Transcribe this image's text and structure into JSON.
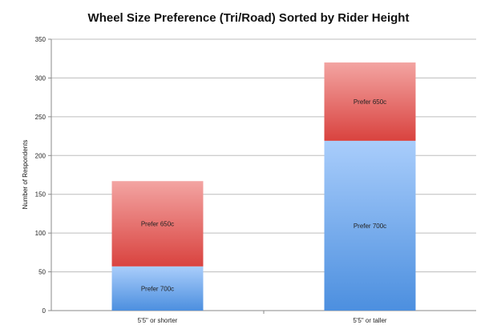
{
  "chart_data": {
    "type": "bar",
    "stacked": true,
    "title": "Wheel Size Preference (Tri/Road) Sorted by Rider Height",
    "xlabel": "",
    "ylabel": "Number of Respondents",
    "ylim": [
      0,
      350
    ],
    "yticks": [
      0,
      50,
      100,
      150,
      200,
      250,
      300,
      350
    ],
    "grid": true,
    "legend": "none",
    "categories": [
      "5'5\" or shorter",
      "5'5\" or taller"
    ],
    "series": [
      {
        "name": "Prefer 700c",
        "values": [
          57,
          219
        ],
        "color_top": "#a9cdfb",
        "color_bottom": "#4c8fdf"
      },
      {
        "name": "Prefer 650c",
        "values": [
          110,
          101
        ],
        "color_top": "#f3a4a2",
        "color_bottom": "#d9433f"
      }
    ]
  }
}
